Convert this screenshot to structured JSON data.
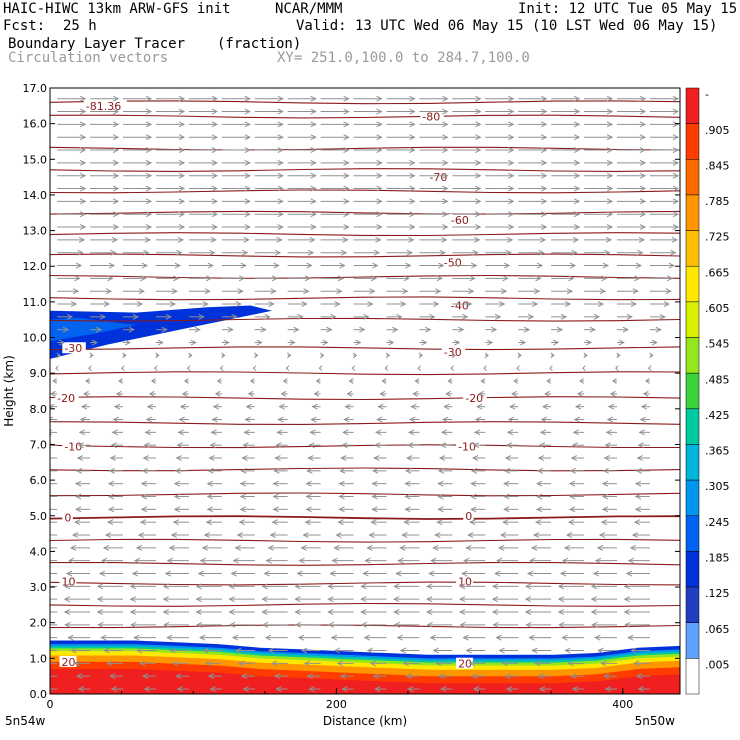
{
  "header": {
    "model": "HAIC-HIWC 13km ARW-GFS init",
    "org": "NCAR/MMM",
    "init": "Init: 12 UTC Tue 05 May 15",
    "fcst_label": "Fcst:",
    "fcst_value": "25 h",
    "valid": "Valid: 13 UTC Wed 06 May 15 (10 LST Wed 06 May 15)",
    "field": "Boundary Layer Tracer",
    "units": "(fraction)",
    "overlay": "Circulation vectors",
    "xy_range": "XY= 251.0,100.0 to 284.7,100.0"
  },
  "chart_data": {
    "type": "heatmap",
    "xlabel": "Distance (km)",
    "ylabel": "Height (km)",
    "xlim": [
      0,
      440
    ],
    "ylim": [
      0,
      17
    ],
    "x_ticks": [
      "0",
      "200",
      "400"
    ],
    "x_tick_values": [
      0,
      200,
      400
    ],
    "y_ticks": [
      "0.0",
      "1.0",
      "2.0",
      "3.0",
      "4.0",
      "5.0",
      "6.0",
      "7.0",
      "8.0",
      "9.0",
      "10.0",
      "11.0",
      "12.0",
      "13.0",
      "14.0",
      "15.0",
      "16.0",
      "17.0"
    ],
    "left_corner_label": "5n54w",
    "right_corner_label": "5n50w",
    "colorbar": {
      "labels": [
        "-",
        ".905",
        ".845",
        ".785",
        ".725",
        ".665",
        ".605",
        ".545",
        ".485",
        ".425",
        ".365",
        ".305",
        ".245",
        ".185",
        ".125",
        ".065",
        ".005"
      ],
      "colors": [
        "#f02020",
        "#ff3c00",
        "#ff6a00",
        "#ff9600",
        "#ffbe00",
        "#ffe800",
        "#d8f000",
        "#96e61e",
        "#3cd23c",
        "#00c8a0",
        "#00b4dc",
        "#0096f0",
        "#0064f0",
        "#0032dc",
        "#2040c0",
        "#60a0ff",
        "#ffffff"
      ]
    },
    "temperature_contours": {
      "levels": [
        -81.36,
        -80,
        -70,
        -60,
        -50,
        -40,
        -30,
        -20,
        -10,
        0,
        10,
        20
      ],
      "labels": [
        {
          "text": "-81.36",
          "x": 25,
          "y": 16.5
        },
        {
          "text": "-80",
          "x": 260,
          "y": 16.2
        },
        {
          "text": "-70",
          "x": 265,
          "y": 14.5
        },
        {
          "text": "-60",
          "x": 280,
          "y": 13.3
        },
        {
          "text": "-50",
          "x": 275,
          "y": 12.1
        },
        {
          "text": "-40",
          "x": 280,
          "y": 10.9
        },
        {
          "text": "-30",
          "x": 10,
          "y": 9.7
        },
        {
          "text": "-30",
          "x": 275,
          "y": 9.6
        },
        {
          "text": "-20",
          "x": 5,
          "y": 8.3
        },
        {
          "text": "-20",
          "x": 290,
          "y": 8.3
        },
        {
          "text": "-10",
          "x": 10,
          "y": 6.95
        },
        {
          "text": "-10",
          "x": 285,
          "y": 6.95
        },
        {
          "text": "0",
          "x": 10,
          "y": 4.95
        },
        {
          "text": "0",
          "x": 290,
          "y": 5.0
        },
        {
          "text": "10",
          "x": 8,
          "y": 3.15
        },
        {
          "text": "10",
          "x": 285,
          "y": 3.15
        },
        {
          "text": "20",
          "x": 8,
          "y": 0.9
        },
        {
          "text": "20",
          "x": 285,
          "y": 0.85
        }
      ],
      "line_heights": [
        16.6,
        16.2,
        15.3,
        14.7,
        14.1,
        13.5,
        12.9,
        12.3,
        11.7,
        11.1,
        10.5,
        9.7,
        9.0,
        8.3,
        7.6,
        6.95,
        6.3,
        5.6,
        4.95,
        4.3,
        3.65,
        3.1,
        2.5,
        1.9
      ]
    },
    "tracer_plume": {
      "description_level_km": [
        9.4,
        10.9
      ],
      "x_extent_km": [
        0,
        155
      ]
    },
    "boundary_layer_top_km": [
      1.5,
      1.5,
      1.5,
      1.45,
      1.4,
      1.3,
      1.25,
      1.2,
      1.15,
      1.1,
      1.1,
      1.1,
      1.1,
      1.15,
      1.3,
      1.35
    ],
    "wind_profile": [
      {
        "z": 16.5,
        "u": 1
      },
      {
        "z": 15.0,
        "u": 1
      },
      {
        "z": 13.0,
        "u": 1
      },
      {
        "z": 11.0,
        "u": 0.7
      },
      {
        "z": 10.0,
        "u": 0.3
      },
      {
        "z": 9.0,
        "u": -0.1
      },
      {
        "z": 8.0,
        "u": -0.3
      },
      {
        "z": 7.0,
        "u": -0.4
      },
      {
        "z": 6.0,
        "u": -0.5
      },
      {
        "z": 5.0,
        "u": -0.5
      },
      {
        "z": 4.0,
        "u": -0.7
      },
      {
        "z": 3.0,
        "u": -0.9
      },
      {
        "z": 2.0,
        "u": -0.9
      },
      {
        "z": 1.0,
        "u": -0.6
      },
      {
        "z": 0.3,
        "u": -0.4
      }
    ]
  },
  "colors": {
    "contour": "#8b1a1a",
    "vector": "#909090",
    "axis": "#000000"
  }
}
